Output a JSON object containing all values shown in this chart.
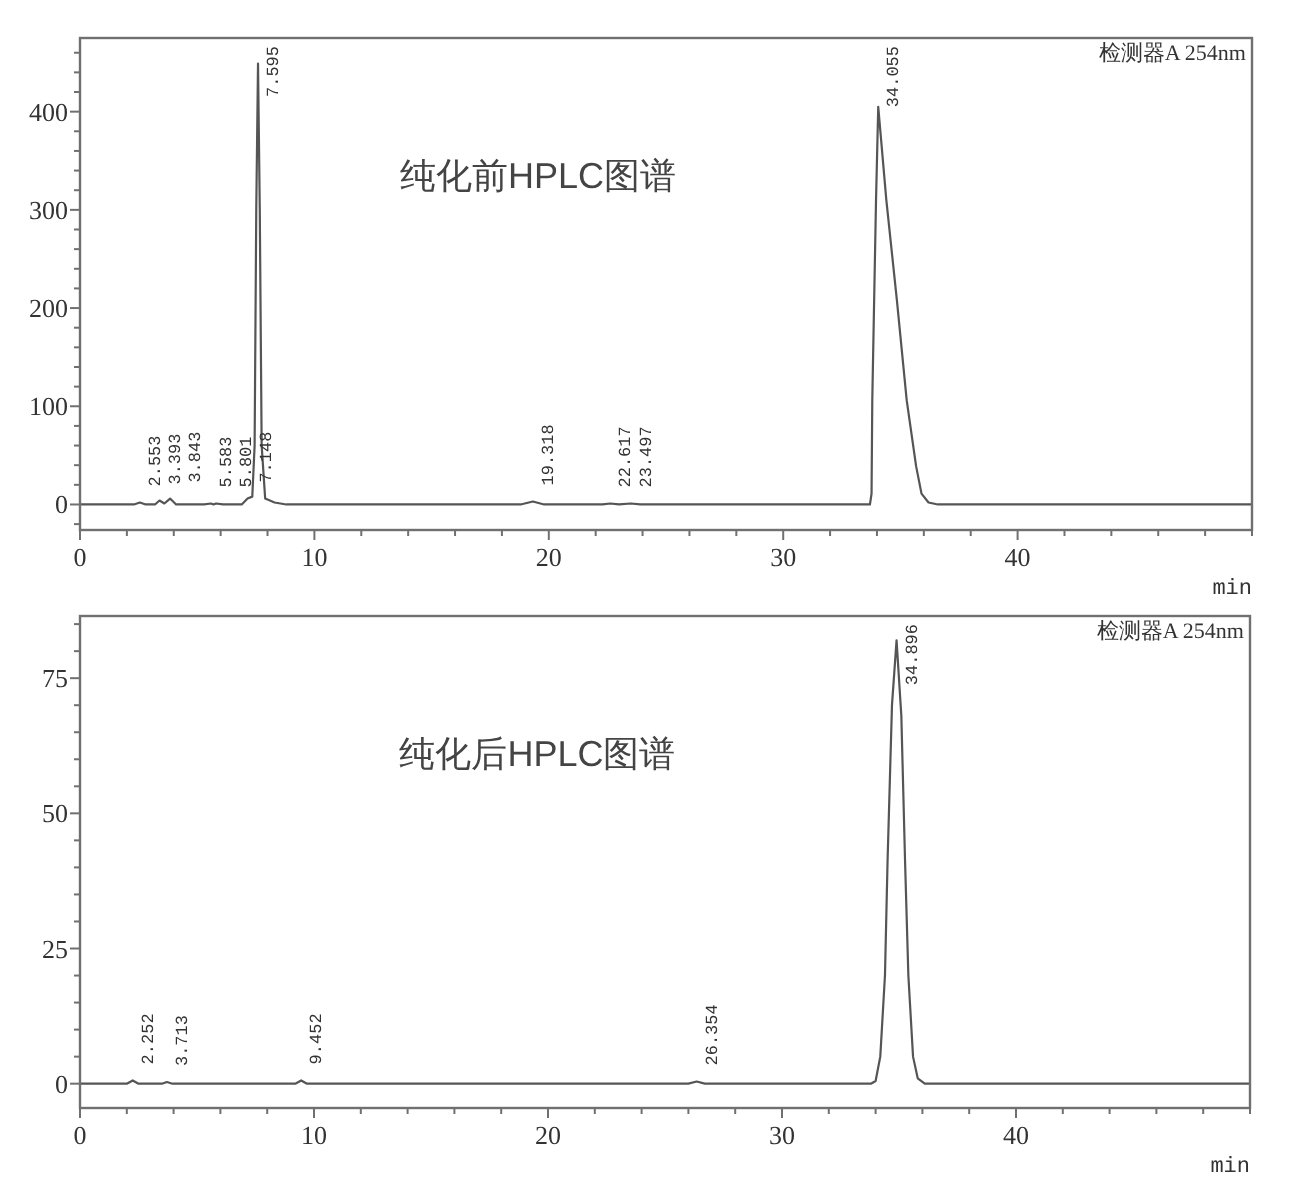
{
  "chart_data": [
    {
      "type": "line",
      "title": "纯化前HPLC图谱",
      "xlabel": "min",
      "xlim": [
        0,
        50
      ],
      "ylim": [
        -26,
        475
      ],
      "xticks": [
        0,
        {
          "value": 2,
          "label": null
        },
        {
          "value": 4,
          "label": null
        },
        {
          "value": 6,
          "label": null
        },
        {
          "value": 8,
          "label": null
        },
        10,
        {
          "value": 12,
          "label": null
        },
        {
          "value": 14,
          "label": null
        },
        {
          "value": 16,
          "label": null
        },
        {
          "value": 18,
          "label": null
        },
        20,
        {
          "value": 22,
          "label": null
        },
        {
          "value": 24,
          "label": null
        },
        {
          "value": 26,
          "label": null
        },
        {
          "value": 28,
          "label": null
        },
        30,
        {
          "value": 32,
          "label": null
        },
        {
          "value": 34,
          "label": null
        },
        {
          "value": 36,
          "label": null
        },
        {
          "value": 38,
          "label": null
        },
        40,
        {
          "value": 42,
          "label": null
        },
        {
          "value": 44,
          "label": null
        },
        {
          "value": 46,
          "label": null
        },
        {
          "value": 48,
          "label": null
        },
        {
          "value": 50,
          "label": null
        }
      ],
      "yticks": [
        {
          "value": -20,
          "label": null
        },
        0,
        {
          "value": 20,
          "label": null
        },
        {
          "value": 40,
          "label": null
        },
        {
          "value": 60,
          "label": null
        },
        {
          "value": 80,
          "label": null
        },
        100,
        {
          "value": 120,
          "label": null
        },
        {
          "value": 140,
          "label": null
        },
        {
          "value": 160,
          "label": null
        },
        {
          "value": 180,
          "label": null
        },
        200,
        {
          "value": 220,
          "label": null
        },
        {
          "value": 240,
          "label": null
        },
        {
          "value": 260,
          "label": null
        },
        {
          "value": 280,
          "label": null
        },
        300,
        {
          "value": 320,
          "label": null
        },
        {
          "value": 340,
          "label": null
        },
        {
          "value": 360,
          "label": null
        },
        {
          "value": 380,
          "label": null
        },
        400,
        {
          "value": 420,
          "label": null
        },
        {
          "value": 440,
          "label": null
        },
        {
          "value": 460,
          "label": null
        }
      ],
      "series": [
        {
          "color": "#555555",
          "x": [
            0,
            2.3,
            2.553,
            2.8,
            3.2,
            3.393,
            3.6,
            3.843,
            4.1,
            5.3,
            5.583,
            5.7,
            5.801,
            6.1,
            6.9,
            7.148,
            7.35,
            7.45,
            7.52,
            7.595,
            7.67,
            7.75,
            7.9,
            8.3,
            8.8,
            18.8,
            19.318,
            19.8,
            22.3,
            22.617,
            23.0,
            23.497,
            23.9,
            33.7,
            33.77,
            33.8,
            33.96,
            34.055,
            34.4,
            34.85,
            35.27,
            35.67,
            35.9,
            36.2,
            36.6,
            50
          ],
          "values": [
            0,
            0,
            2,
            0,
            0,
            4,
            1,
            6,
            0,
            0,
            1,
            0,
            1,
            0,
            0,
            6,
            8,
            60,
            300,
            449,
            300,
            60,
            6,
            2,
            0,
            0,
            3,
            0,
            0,
            1,
            0,
            1,
            0,
            0,
            11,
            106,
            310,
            405,
            310,
            208,
            106,
            39,
            11,
            2,
            0,
            0
          ]
        }
      ],
      "annotations": [
        "检测器A 254nm",
        {
          "text": "2.553",
          "x": 2.553,
          "y": 2
        },
        {
          "text": "3.393",
          "x": 3.393,
          "y": 4
        },
        {
          "text": "3.843",
          "x": 3.843,
          "y": 6
        },
        {
          "text": "5.583",
          "x": 5.583,
          "y": 1
        },
        {
          "text": "5.801",
          "x": 5.801,
          "y": 1
        },
        {
          "text": "7.148",
          "x": 7.148,
          "y": 6
        },
        {
          "text": "7.595",
          "x": 7.595,
          "y": 449
        },
        {
          "text": "19.318",
          "x": 19.318,
          "y": 3
        },
        {
          "text": "22.617",
          "x": 22.617,
          "y": 1
        },
        {
          "text": "23.497",
          "x": 23.497,
          "y": 1
        },
        {
          "text": "34.055",
          "x": 34.055,
          "y": 405
        }
      ]
    },
    {
      "type": "line",
      "title": "纯化后HPLC图谱",
      "xlabel": "min",
      "xlim": [
        0,
        50
      ],
      "ylim": [
        -4.5,
        86.5
      ],
      "xticks": [
        0,
        {
          "value": 2,
          "label": null
        },
        {
          "value": 4,
          "label": null
        },
        {
          "value": 6,
          "label": null
        },
        {
          "value": 8,
          "label": null
        },
        10,
        {
          "value": 12,
          "label": null
        },
        {
          "value": 14,
          "label": null
        },
        {
          "value": 16,
          "label": null
        },
        {
          "value": 18,
          "label": null
        },
        20,
        {
          "value": 22,
          "label": null
        },
        {
          "value": 24,
          "label": null
        },
        {
          "value": 26,
          "label": null
        },
        {
          "value": 28,
          "label": null
        },
        30,
        {
          "value": 32,
          "label": null
        },
        {
          "value": 34,
          "label": null
        },
        {
          "value": 36,
          "label": null
        },
        {
          "value": 38,
          "label": null
        },
        40,
        {
          "value": 42,
          "label": null
        },
        {
          "value": 44,
          "label": null
        },
        {
          "value": 46,
          "label": null
        },
        {
          "value": 48,
          "label": null
        },
        {
          "value": 50,
          "label": null
        }
      ],
      "yticks": [
        0,
        {
          "value": 5,
          "label": null
        },
        {
          "value": 10,
          "label": null
        },
        {
          "value": 15,
          "label": null
        },
        {
          "value": 20,
          "label": null
        },
        25,
        {
          "value": 30,
          "label": null
        },
        {
          "value": 35,
          "label": null
        },
        {
          "value": 40,
          "label": null
        },
        {
          "value": 45,
          "label": null
        },
        50,
        {
          "value": 55,
          "label": null
        },
        {
          "value": 60,
          "label": null
        },
        {
          "value": 65,
          "label": null
        },
        {
          "value": 70,
          "label": null
        },
        75,
        {
          "value": 80,
          "label": null
        },
        {
          "value": 85,
          "label": null
        }
      ],
      "series": [
        {
          "color": "#555555",
          "x": [
            0,
            2.0,
            2.252,
            2.5,
            3.5,
            3.713,
            3.95,
            9.2,
            9.452,
            9.7,
            26.0,
            26.354,
            26.7,
            33.8,
            34.0,
            34.2,
            34.4,
            34.51,
            34.7,
            34.896,
            35.1,
            35.26,
            35.4,
            35.6,
            35.8,
            36.1,
            37,
            50
          ],
          "values": [
            0,
            0,
            0.6,
            0,
            0,
            0.3,
            0,
            0,
            0.6,
            0,
            0,
            0.4,
            0,
            0,
            0.5,
            5,
            20,
            41,
            70,
            82,
            68,
            41,
            20,
            5,
            1,
            0,
            0,
            0
          ]
        }
      ],
      "annotations": [
        "检测器A 254nm",
        {
          "text": "2.252",
          "x": 2.252,
          "y": 0.6
        },
        {
          "text": "3.713",
          "x": 3.713,
          "y": 0.3
        },
        {
          "text": "9.452",
          "x": 9.452,
          "y": 0.6
        },
        {
          "text": "26.354",
          "x": 26.354,
          "y": 0.4
        },
        {
          "text": "34.896",
          "x": 34.896,
          "y": 82
        }
      ]
    }
  ]
}
